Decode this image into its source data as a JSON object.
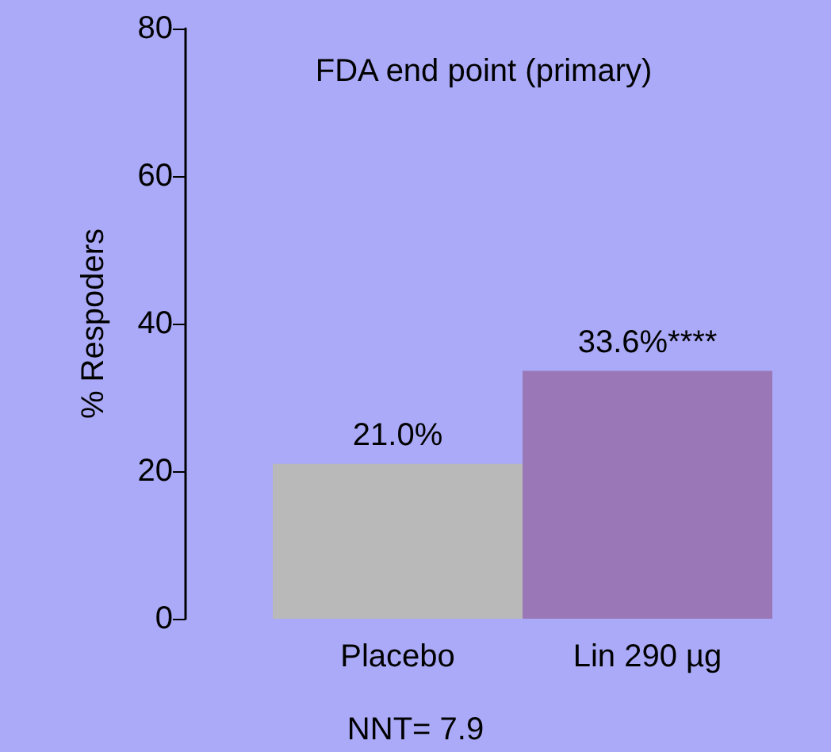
{
  "chart_data": {
    "type": "bar",
    "title": "FDA end point (primary)",
    "ylabel": "% Respoders",
    "categories": [
      "Placebo",
      "Lin 290 µg"
    ],
    "values": [
      21.0,
      33.6
    ],
    "colors": [
      "#b9b9b9",
      "#9a78b8"
    ],
    "value_labels": [
      "21.0%",
      "33.6%****"
    ],
    "ylim": [
      0,
      80
    ],
    "yticks": [
      0,
      20,
      40,
      60,
      80
    ],
    "grid": false,
    "annotations": [
      "NNT= 7.9"
    ]
  }
}
